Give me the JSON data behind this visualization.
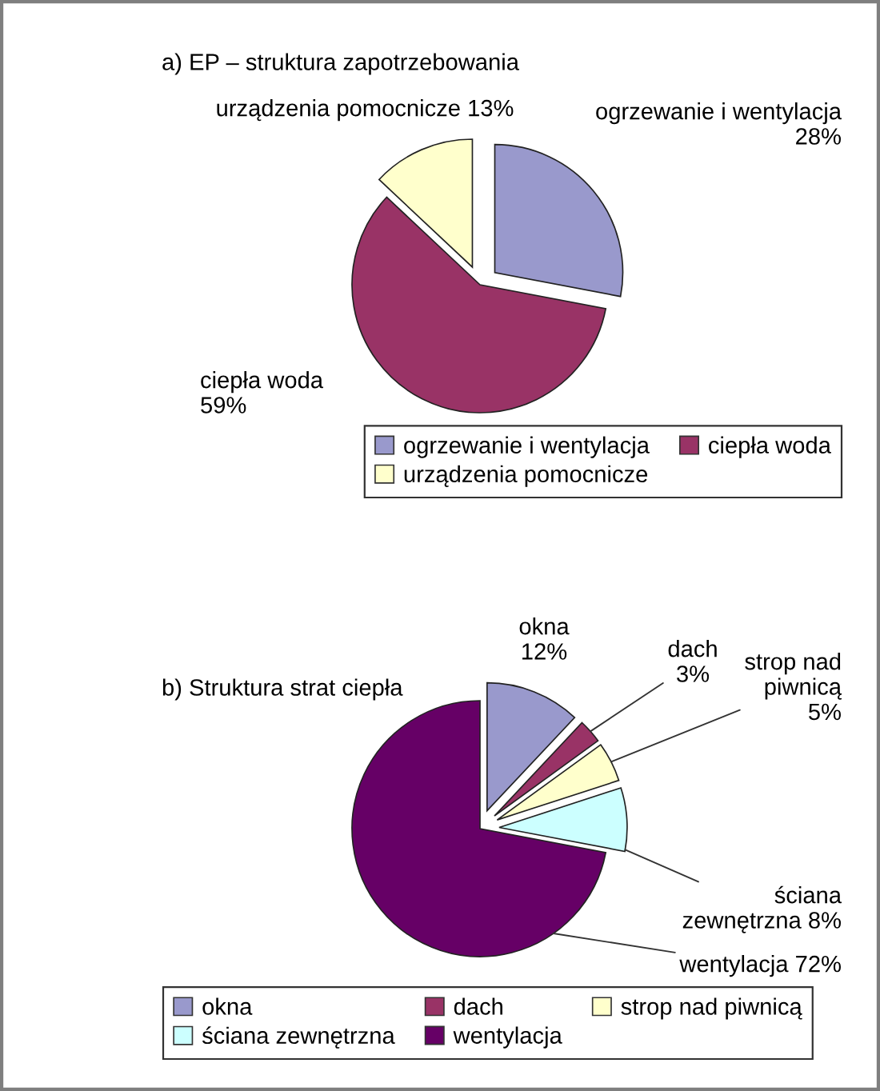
{
  "chart_data": [
    {
      "type": "pie",
      "title": "a) EP – struktura zapotrzebowania",
      "categories": [
        "ogrzewanie i wentylacja",
        "ciepła woda",
        "urządzenia pomocnicze"
      ],
      "values": [
        28,
        59,
        13
      ],
      "value_labels": [
        "28%",
        "59%",
        "13%"
      ],
      "colors": [
        "#9999cc",
        "#993366",
        "#ffffcc"
      ],
      "legend": "bottom right"
    },
    {
      "type": "pie",
      "title": "b) Struktura strat ciepła",
      "categories": [
        "okna",
        "dach",
        "strop nad piwnicą",
        "ściana zewnętrzna",
        "wentylacja"
      ],
      "values": [
        12,
        3,
        5,
        8,
        72
      ],
      "value_labels": [
        "12%",
        "3%",
        "5%",
        "8%",
        "72%"
      ],
      "colors": [
        "#9999cc",
        "#993366",
        "#ffffcc",
        "#ccffff",
        "#660066"
      ],
      "legend": "bottom left"
    }
  ]
}
